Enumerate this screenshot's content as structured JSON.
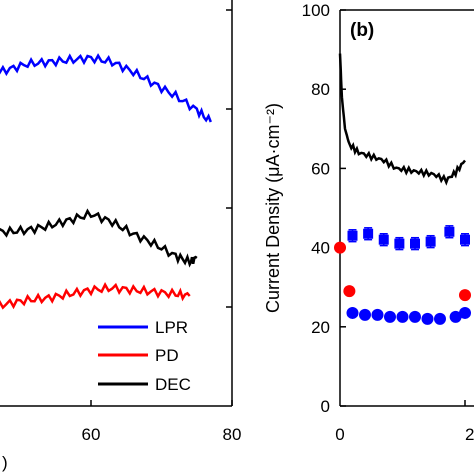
{
  "chart_data": [
    {
      "panel": "a",
      "type": "line",
      "xlim": [
        0,
        80
      ],
      "x_ticks": [
        "60",
        "80"
      ],
      "partial_label": ")",
      "legend": {
        "placement": "bottom-right",
        "entries": [
          {
            "label": "LPR",
            "color": "#0000ff"
          },
          {
            "label": "PD",
            "color": "#ff0000"
          },
          {
            "label": "DEC",
            "color": "#000000"
          }
        ]
      },
      "series": [
        {
          "name": "LPR",
          "color": "#0000ff",
          "points": [
            [
              30,
              85
            ],
            [
              33,
              86
            ],
            [
              36,
              88
            ],
            [
              39,
              84
            ],
            [
              42,
              80
            ],
            [
              45,
              76
            ],
            [
              48,
              70
            ],
            [
              51,
              64
            ],
            [
              54,
              62
            ],
            [
              57,
              60
            ],
            [
              60,
              58
            ],
            [
              63,
              62
            ],
            [
              66,
              72
            ],
            [
              69,
              84
            ],
            [
              72,
              96
            ],
            [
              75,
              110
            ],
            [
              77,
              122
            ]
          ]
        },
        {
          "name": "DEC",
          "color": "#000000",
          "points": [
            [
              30,
              248
            ],
            [
              33,
              250
            ],
            [
              36,
              246
            ],
            [
              39,
              238
            ],
            [
              42,
              232
            ],
            [
              45,
              230
            ],
            [
              48,
              232
            ],
            [
              51,
              230
            ],
            [
              54,
              226
            ],
            [
              57,
              220
            ],
            [
              60,
              214
            ],
            [
              63,
              222
            ],
            [
              66,
              234
            ],
            [
              69,
              244
            ],
            [
              72,
              256
            ],
            [
              74,
              262
            ],
            [
              75,
              258
            ]
          ]
        },
        {
          "name": "PD",
          "color": "#ff0000",
          "points": [
            [
              30,
              298
            ],
            [
              33,
              300
            ],
            [
              36,
              302
            ],
            [
              39,
              306
            ],
            [
              42,
              310
            ],
            [
              45,
              308
            ],
            [
              48,
              304
            ],
            [
              51,
              300
            ],
            [
              54,
              298
            ],
            [
              57,
              294
            ],
            [
              60,
              290
            ],
            [
              63,
              288
            ],
            [
              66,
              290
            ],
            [
              69,
              292
            ],
            [
              72,
              294
            ],
            [
              74,
              296
            ]
          ]
        }
      ]
    },
    {
      "panel": "b",
      "panel_label": "(b)",
      "type": "scatter",
      "ylabel": "Current Density (μA·cm⁻²)",
      "ylim": [
        0,
        100
      ],
      "y_ticks": [
        0,
        20,
        40,
        60,
        80,
        100
      ],
      "x_ticks": [
        "0",
        "2"
      ],
      "series": [
        {
          "name": "",
          "color": "#000000",
          "kind": "line",
          "points": [
            [
              0.0,
              89
            ],
            [
              0.03,
              78
            ],
            [
              0.08,
              70
            ],
            [
              0.15,
              66
            ],
            [
              0.3,
              64
            ],
            [
              0.5,
              63
            ],
            [
              0.7,
              62
            ],
            [
              0.9,
              60
            ],
            [
              1.1,
              59.5
            ],
            [
              1.3,
              59
            ],
            [
              1.5,
              58.5
            ],
            [
              1.7,
              57
            ],
            [
              1.85,
              59
            ],
            [
              2.0,
              62
            ]
          ]
        },
        {
          "name": "",
          "color": "#0000ff",
          "kind": "square-errorbar",
          "points": [
            [
              0.0,
              40
            ],
            [
              0.2,
              43
            ],
            [
              0.45,
              43.5
            ],
            [
              0.7,
              42
            ],
            [
              0.95,
              41
            ],
            [
              1.2,
              41
            ],
            [
              1.45,
              41.5
            ],
            [
              1.75,
              44
            ],
            [
              2.0,
              42
            ]
          ],
          "error": 1.5
        },
        {
          "name": "",
          "color": "#0000ff",
          "kind": "circle",
          "points": [
            [
              0.2,
              23.5
            ],
            [
              0.4,
              23
            ],
            [
              0.6,
              23
            ],
            [
              0.8,
              22.5
            ],
            [
              1.0,
              22.5
            ],
            [
              1.2,
              22.5
            ],
            [
              1.4,
              22
            ],
            [
              1.6,
              22
            ],
            [
              1.85,
              22.5
            ],
            [
              2.0,
              23.5
            ]
          ]
        },
        {
          "name": "",
          "color": "#ff0000",
          "kind": "circle",
          "points": [
            [
              0.0,
              40
            ],
            [
              0.15,
              29
            ],
            [
              2.0,
              28
            ]
          ]
        }
      ]
    }
  ]
}
